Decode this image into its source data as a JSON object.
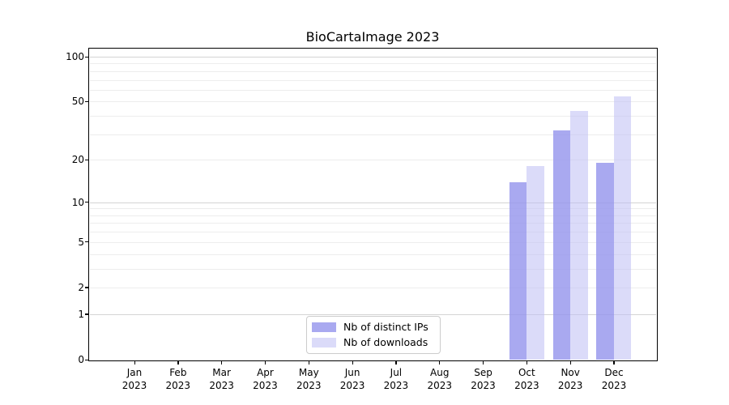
{
  "chart_data": {
    "type": "bar",
    "title": "BioCartaImage 2023",
    "y_scale": "log10(1+y)",
    "grid": true,
    "legend_position": "lower center",
    "ylim": [
      0,
      113
    ],
    "y_ticks": [
      0,
      1,
      2,
      5,
      10,
      20,
      50,
      100
    ],
    "y_major_gridlines": [
      1,
      10,
      100
    ],
    "y_minor_gridlines": [
      2,
      3,
      4,
      5,
      6,
      7,
      8,
      9,
      20,
      30,
      40,
      50,
      60,
      70,
      80,
      90
    ],
    "categories": [
      {
        "month": "Jan",
        "year": "2023"
      },
      {
        "month": "Feb",
        "year": "2023"
      },
      {
        "month": "Mar",
        "year": "2023"
      },
      {
        "month": "Apr",
        "year": "2023"
      },
      {
        "month": "May",
        "year": "2023"
      },
      {
        "month": "Jun",
        "year": "2023"
      },
      {
        "month": "Jul",
        "year": "2023"
      },
      {
        "month": "Aug",
        "year": "2023"
      },
      {
        "month": "Sep",
        "year": "2023"
      },
      {
        "month": "Oct",
        "year": "2023"
      },
      {
        "month": "Nov",
        "year": "2023"
      },
      {
        "month": "Dec",
        "year": "2023"
      }
    ],
    "series": [
      {
        "name": "Nb of distinct IPs",
        "color": "#9494ec",
        "alpha": 0.8,
        "values": [
          0,
          0,
          0,
          0,
          0,
          0,
          0,
          0,
          0,
          14,
          32,
          19
        ]
      },
      {
        "name": "Nb of downloads",
        "color": "#bebef4",
        "alpha": 0.55,
        "values": [
          0,
          0,
          0,
          0,
          0,
          0,
          0,
          0,
          0,
          18,
          43,
          54
        ]
      }
    ]
  }
}
